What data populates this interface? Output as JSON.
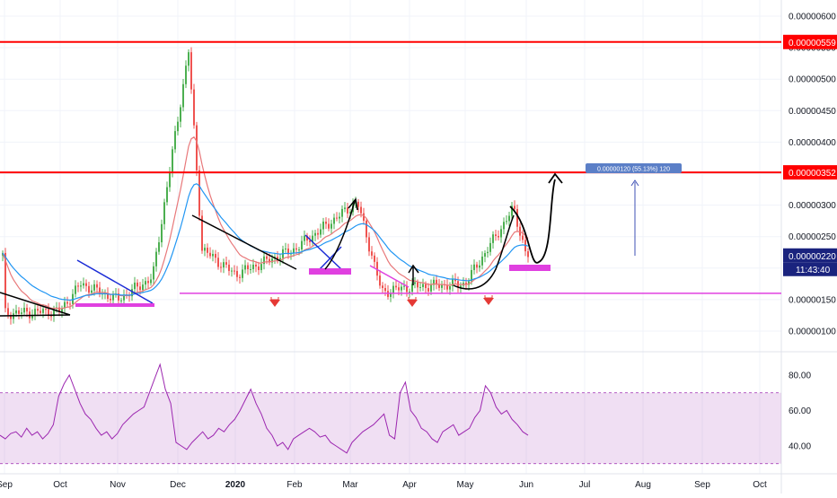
{
  "chart_data": [
    {
      "type": "candlestick",
      "title": "",
      "xlabel": "",
      "ylabel": "",
      "ylim": [
        7.5e-07,
        6.2e-06
      ],
      "x_ticks": [
        "Sep",
        "Oct",
        "Nov",
        "Dec",
        "2020",
        "Feb",
        "Mar",
        "Apr",
        "May",
        "Jun",
        "Jul",
        "Aug",
        "Sep",
        "Oct"
      ],
      "y_ticks": [
        "0.00000600",
        "0.00000550",
        "0.00000500",
        "0.00000450",
        "0.00000400",
        "0.00000350",
        "0.00000300",
        "0.00000250",
        "0.00000200",
        "0.00000150",
        "0.00000100"
      ],
      "price_anchors": [
        {
          "month": "Sep",
          "price": 1.28
        },
        {
          "month": "Oct",
          "price": 1.32
        },
        {
          "month": "mid-Oct",
          "price": 1.75
        },
        {
          "month": "Nov",
          "price": 1.5
        },
        {
          "month": "late-Nov",
          "price": 1.85
        },
        {
          "month": "Dec",
          "price": 5.45
        },
        {
          "month": "mid-Dec",
          "price": 2.3
        },
        {
          "month": "2020",
          "price": 1.9
        },
        {
          "month": "Feb",
          "price": 2.3
        },
        {
          "month": "Mar",
          "price": 3.05
        },
        {
          "month": "mid-Mar",
          "price": 1.62
        },
        {
          "month": "Apr",
          "price": 1.7
        },
        {
          "month": "May",
          "price": 1.75
        },
        {
          "month": "late-May",
          "price": 2.95
        },
        {
          "month": "Jun",
          "price": 2.2
        }
      ],
      "price_unit_note": "prices in units of 1e-6",
      "horizontal_levels": [
        {
          "value": "0.00000559",
          "color": "#ff0000"
        },
        {
          "value": "0.00000352",
          "color": "#ff0000"
        },
        {
          "value": "0.00000160",
          "color": "#e040e0"
        }
      ],
      "last_price_label": "0.00000220",
      "countdown_label": "11:43:40",
      "projection_label": "0.00000120 (55.13%) 120",
      "colors": {
        "up": "#4caf50",
        "down": "#ef5350",
        "ema_fast": "#e8787a",
        "ema_slow": "#2196f3",
        "level": "#ff0000",
        "support": "#e040e0"
      }
    },
    {
      "type": "line",
      "title": "",
      "series": [
        {
          "values": [
            46,
            44,
            47,
            48,
            45,
            50,
            46,
            48,
            44,
            47,
            52,
            68,
            75,
            80,
            72,
            64,
            58,
            55,
            50,
            46,
            48,
            44,
            47,
            52,
            55,
            58,
            60,
            62,
            70,
            78,
            86,
            72,
            64,
            42,
            40,
            38,
            42,
            45,
            48,
            44,
            46,
            50,
            48,
            52,
            55,
            60,
            66,
            72,
            64,
            58,
            50,
            46,
            40,
            42,
            38,
            44,
            46,
            48,
            50,
            48,
            45,
            46,
            42,
            40,
            38,
            36,
            42,
            45,
            48,
            50,
            52,
            55,
            58,
            46,
            44,
            70,
            76,
            60,
            56,
            50,
            48,
            44,
            42,
            48,
            50,
            52,
            46,
            48,
            50,
            56,
            60,
            74,
            70,
            62,
            58,
            60,
            55,
            52,
            48,
            46
          ]
        }
      ],
      "ylim": [
        25,
        95
      ],
      "y_ticks": [
        "80.00",
        "60.00",
        "40.00"
      ],
      "band": [
        30,
        70
      ],
      "colors": {
        "line": "#9c27b0",
        "band": "rgba(156,39,176,0.15)"
      }
    }
  ]
}
